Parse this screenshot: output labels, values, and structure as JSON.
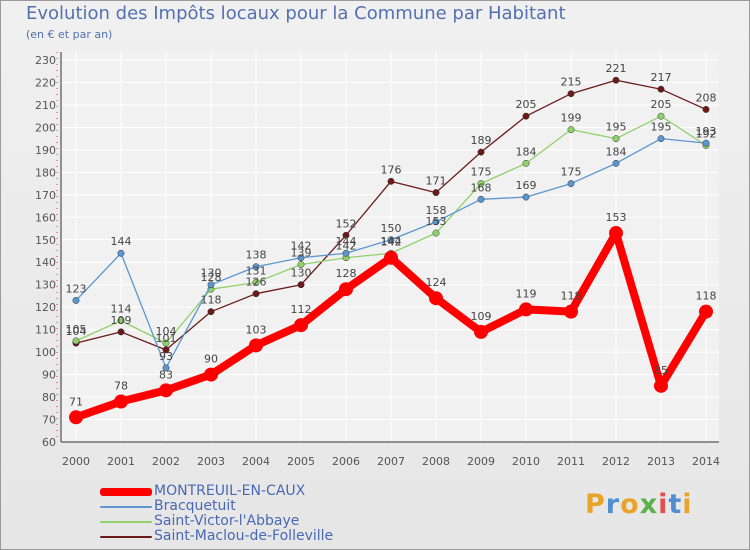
{
  "chart_data": {
    "type": "line",
    "title": "Evolution des Impôts locaux pour la Commune par Habitant",
    "subtitle": "(en € et par an)",
    "xlabel": "",
    "ylabel": "",
    "categories": [
      "2000",
      "2001",
      "2002",
      "2003",
      "2004",
      "2005",
      "2006",
      "2007",
      "2008",
      "2009",
      "2010",
      "2011",
      "2012",
      "2013",
      "2014"
    ],
    "ylim": [
      60,
      230
    ],
    "yticks": [
      "60",
      "70",
      "80",
      "90",
      "100",
      "110",
      "120",
      "130",
      "140",
      "150",
      "160",
      "170",
      "180",
      "190",
      "200",
      "210",
      "220",
      "230"
    ],
    "series": [
      {
        "name": "Saint-Maclou-de-Folleville",
        "color": "#6b1a1a",
        "values": [
          104,
          109,
          101,
          118,
          126,
          130,
          152,
          176,
          171,
          189,
          205,
          215,
          221,
          217,
          208
        ]
      },
      {
        "name": "Saint-Victor-l'Abbaye",
        "color": "#8fd16a",
        "values": [
          105,
          114,
          104,
          128,
          131,
          139,
          142,
          144,
          153,
          175,
          184,
          199,
          195,
          205,
          192
        ]
      },
      {
        "name": "Bracquetuit",
        "color": "#5c96cf",
        "values": [
          123,
          144,
          93,
          130,
          138,
          142,
          144,
          150,
          158,
          168,
          169,
          175,
          184,
          195,
          193
        ]
      },
      {
        "name": "MONTREUIL-EN-CAUX",
        "color": "#ff0000",
        "values": [
          71,
          78,
          83,
          90,
          103,
          112,
          128,
          142,
          124,
          109,
          119,
          118,
          153,
          85,
          118
        ]
      }
    ]
  },
  "legend": {
    "items": [
      {
        "label": "MONTREUIL-EN-CAUX",
        "color": "#ff0000"
      },
      {
        "label": "Bracquetuit",
        "color": "#5c96cf"
      },
      {
        "label": "Saint-Victor-l'Abbaye",
        "color": "#8fd16a"
      },
      {
        "label": "Saint-Maclou-de-Folleville",
        "color": "#6b1a1a"
      }
    ]
  },
  "branding": {
    "text": "Proxiti"
  }
}
